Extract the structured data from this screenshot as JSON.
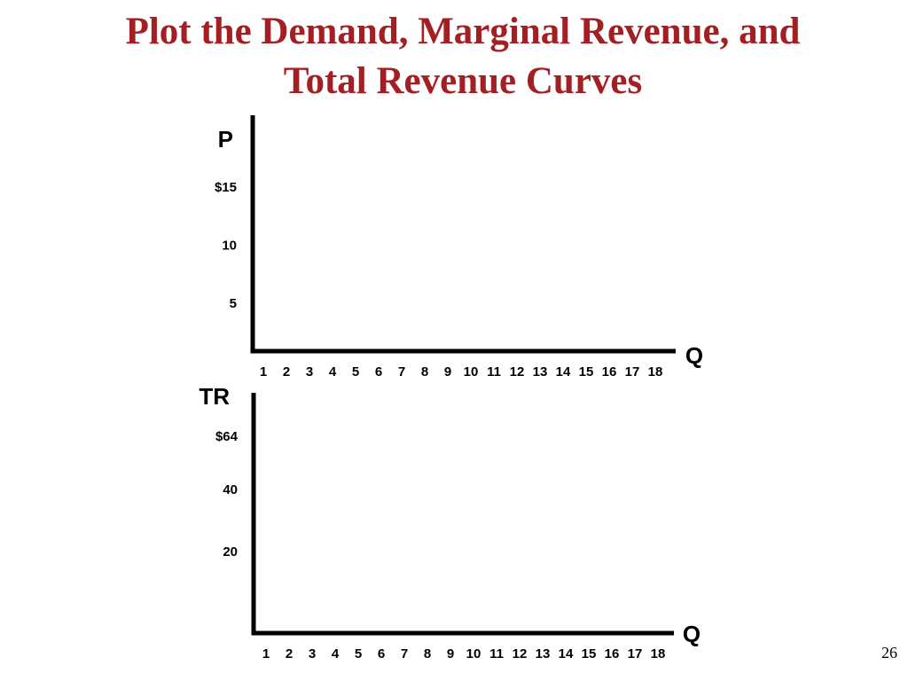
{
  "slide": {
    "title_lines": [
      "Plot the Demand, Marginal Revenue, and",
      "Total Revenue Curves"
    ],
    "page_number": "26"
  },
  "colors": {
    "title": "#a31f24",
    "axis": "#000000"
  },
  "chart_data": [
    {
      "type": "line",
      "title": "",
      "ylabel": "P",
      "xlabel": "Q",
      "grid": false,
      "x_ticks": [
        1,
        2,
        3,
        4,
        5,
        6,
        7,
        8,
        9,
        10,
        11,
        12,
        13,
        14,
        15,
        16,
        17,
        18
      ],
      "x_tick_labels": [
        "1",
        "2",
        "3",
        "4",
        "5",
        "6",
        "7",
        "8",
        "9",
        "10",
        "11",
        "12",
        "13",
        "14",
        "15",
        "16",
        "17",
        "18"
      ],
      "y_ticks": [
        5,
        10,
        15
      ],
      "y_tick_labels": [
        "5",
        "10",
        "$15"
      ],
      "xlim": [
        0,
        18.5
      ],
      "ylim": [
        0,
        19.5
      ],
      "series": []
    },
    {
      "type": "line",
      "title": "",
      "ylabel": "TR",
      "xlabel": "Q",
      "grid": false,
      "x_ticks": [
        1,
        2,
        3,
        4,
        5,
        6,
        7,
        8,
        9,
        10,
        11,
        12,
        13,
        14,
        15,
        16,
        17,
        18
      ],
      "x_tick_labels": [
        "1",
        "2",
        "3",
        "4",
        "5",
        "6",
        "7",
        "8",
        "9",
        "10",
        "11",
        "12",
        "13",
        "14",
        "15",
        "16",
        "17",
        "18"
      ],
      "y_ticks": [
        20,
        40,
        64
      ],
      "y_tick_labels": [
        "20",
        "40",
        "$64"
      ],
      "ylim": [
        0,
        80
      ],
      "series": []
    }
  ]
}
